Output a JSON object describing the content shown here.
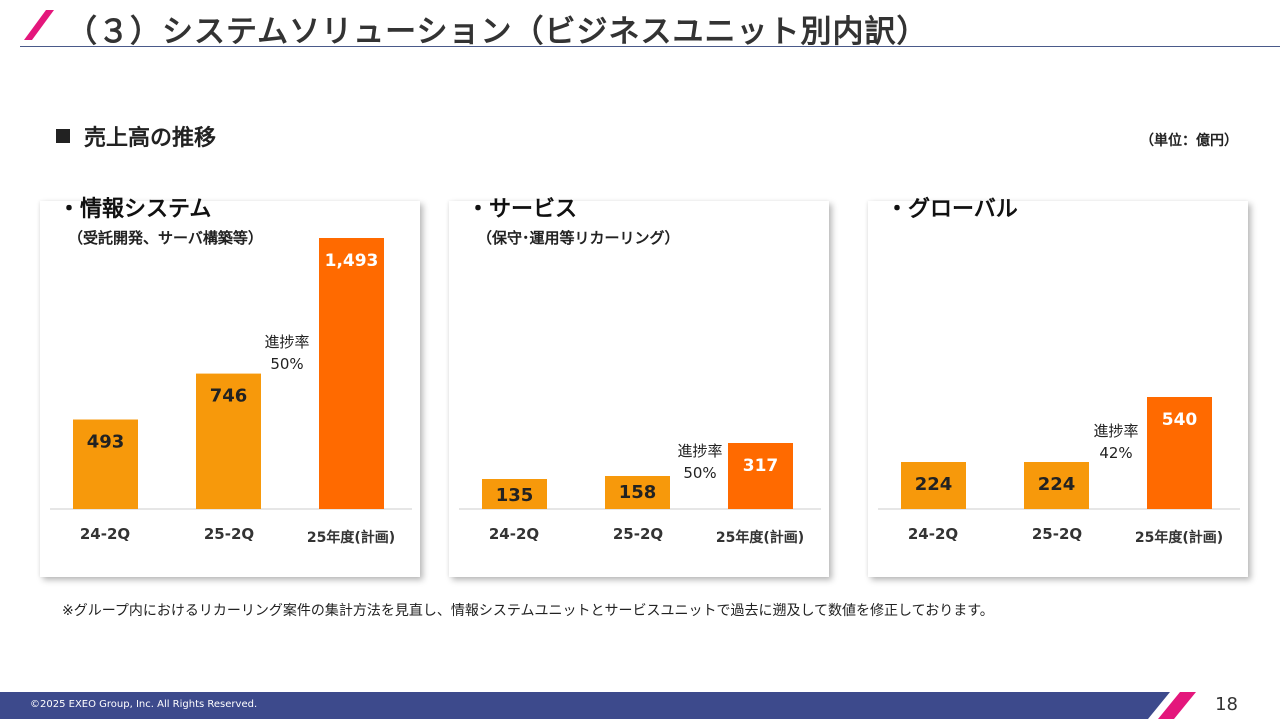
{
  "header": {
    "title": "（３）システムソリューション（ビジネスユニット別内訳）"
  },
  "section": {
    "title": "売上高の推移",
    "unit": "（単位：億円）"
  },
  "colors": {
    "bar_light": "#F7990B",
    "bar_dark": "#FF6A00",
    "accent": "#E4177C",
    "navy": "#3D4A8C"
  },
  "chart_data": [
    {
      "type": "bar",
      "title": "・情報システム",
      "subtitle": "（受託開発、サーバ構築等）",
      "categories": [
        "24-2Q",
        "25-2Q",
        "25年度(計画)"
      ],
      "values": [
        493,
        746,
        1493
      ],
      "value_labels": [
        "493",
        "746",
        "1,493"
      ],
      "progress_label": "進捗率",
      "progress_value": "50%",
      "ylim": [
        0,
        1493
      ],
      "max_bar_fraction": 1.0
    },
    {
      "type": "bar",
      "title": "・サービス",
      "subtitle": "（保守･運用等リカーリング）",
      "categories": [
        "24-2Q",
        "25-2Q",
        "25年度(計画)"
      ],
      "values": [
        135,
        158,
        317
      ],
      "value_labels": [
        "135",
        "158",
        "317"
      ],
      "progress_label": "進捗率",
      "progress_value": "50%",
      "ylim": [
        0,
        1493
      ],
      "max_bar_fraction": 0.24
    },
    {
      "type": "bar",
      "title": "・グローバル",
      "subtitle": "",
      "categories": [
        "24-2Q",
        "25-2Q",
        "25年度(計画)"
      ],
      "values": [
        224,
        224,
        540
      ],
      "value_labels": [
        "224",
        "224",
        "540"
      ],
      "progress_label": "進捗率",
      "progress_value": "42%",
      "ylim": [
        0,
        1493
      ],
      "max_bar_fraction": 0.41
    }
  ],
  "note": "※グループ内におけるリカーリング案件の集計方法を見直し、情報システムユニットとサービスユニットで過去に遡及して数値を修正しております。",
  "footer": {
    "copyright": "©2025 EXEO Group, Inc. All Rights Reserved.",
    "page": "18"
  }
}
